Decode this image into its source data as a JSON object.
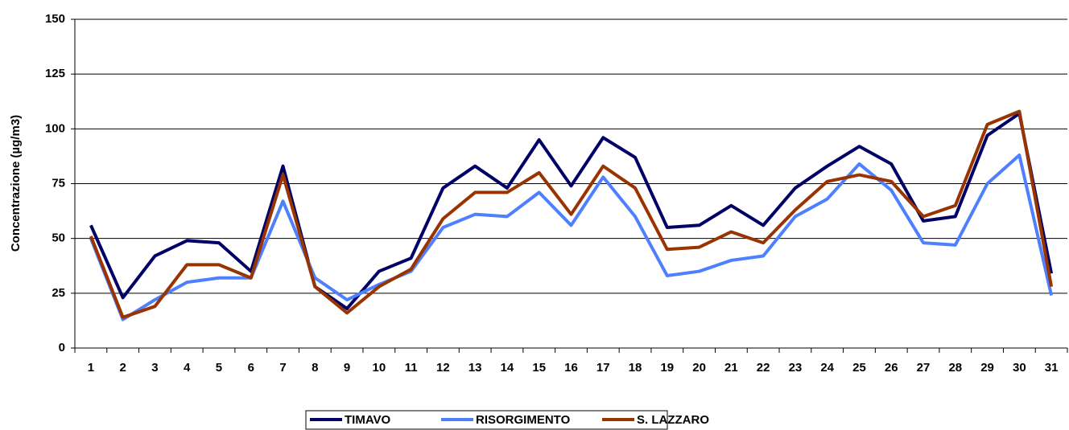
{
  "chart_data": {
    "type": "line",
    "y_label": "Concentrazione (µg/m3)",
    "categories": [
      "1",
      "2",
      "3",
      "4",
      "5",
      "6",
      "7",
      "8",
      "9",
      "10",
      "11",
      "12",
      "13",
      "14",
      "15",
      "16",
      "17",
      "18",
      "19",
      "20",
      "21",
      "22",
      "23",
      "24",
      "25",
      "26",
      "27",
      "28",
      "29",
      "30",
      "31"
    ],
    "series": [
      {
        "name": "TIMAVO",
        "color": "#000066",
        "values": [
          56,
          23,
          42,
          49,
          48,
          35,
          83,
          28,
          18,
          35,
          41,
          73,
          83,
          73,
          95,
          74,
          96,
          87,
          55,
          56,
          65,
          56,
          73,
          83,
          92,
          84,
          58,
          60,
          97,
          107,
          34
        ]
      },
      {
        "name": "RISORGIMENTO",
        "color": "#4d7fff",
        "values": [
          50,
          13,
          22,
          30,
          32,
          32,
          67,
          32,
          22,
          29,
          35,
          55,
          61,
          60,
          71,
          56,
          78,
          60,
          33,
          35,
          40,
          42,
          60,
          68,
          84,
          72,
          48,
          47,
          75,
          88,
          24
        ]
      },
      {
        "name": "S. LAZZARO",
        "color": "#993300",
        "values": [
          51,
          14,
          19,
          38,
          38,
          32,
          79,
          28,
          16,
          28,
          36,
          59,
          71,
          71,
          80,
          61,
          83,
          73,
          45,
          46,
          53,
          48,
          63,
          76,
          79,
          76,
          60,
          65,
          102,
          108,
          28
        ]
      }
    ],
    "ylim": [
      0,
      150
    ],
    "yticks": [
      0,
      25,
      50,
      75,
      100,
      125,
      150
    ],
    "grid": true,
    "legend": "bottom"
  }
}
